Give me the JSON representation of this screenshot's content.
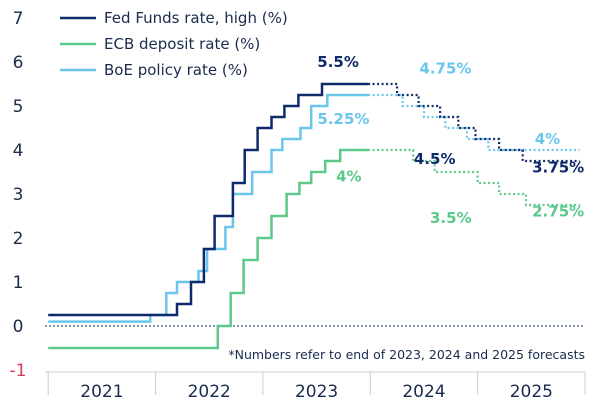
{
  "chart_data": {
    "type": "line",
    "x_categories": [
      "2021",
      "2022",
      "2023",
      "2024",
      "2025"
    ],
    "ylim": [
      -1,
      7
    ],
    "yticks": [
      "-1",
      "0",
      "1",
      "2",
      "3",
      "4",
      "5",
      "6",
      "7"
    ],
    "colors": {
      "fed": "#0e2a6b",
      "ecb": "#5cc98b",
      "boe": "#6bc6ec",
      "axis_text": "#1a2b4c",
      "negative": "#d83c5a"
    },
    "series": [
      {
        "name": "Fed Funds rate, high (%)",
        "color": "#0e2a6b",
        "actual": [
          [
            2021.0,
            0.25
          ],
          [
            2022.2,
            0.25
          ],
          [
            2022.2,
            0.5
          ],
          [
            2022.33,
            0.5
          ],
          [
            2022.33,
            1.0
          ],
          [
            2022.45,
            1.0
          ],
          [
            2022.45,
            1.75
          ],
          [
            2022.55,
            1.75
          ],
          [
            2022.55,
            2.5
          ],
          [
            2022.72,
            2.5
          ],
          [
            2022.72,
            3.25
          ],
          [
            2022.83,
            3.25
          ],
          [
            2022.83,
            4.0
          ],
          [
            2022.95,
            4.0
          ],
          [
            2022.95,
            4.5
          ],
          [
            2023.08,
            4.5
          ],
          [
            2023.08,
            4.75
          ],
          [
            2023.2,
            4.75
          ],
          [
            2023.2,
            5.0
          ],
          [
            2023.33,
            5.0
          ],
          [
            2023.33,
            5.25
          ],
          [
            2023.55,
            5.25
          ],
          [
            2023.55,
            5.5
          ],
          [
            2023.98,
            5.5
          ]
        ],
        "forecast": [
          [
            2023.98,
            5.5
          ],
          [
            2024.25,
            5.5
          ],
          [
            2024.25,
            5.25
          ],
          [
            2024.45,
            5.25
          ],
          [
            2024.45,
            5.0
          ],
          [
            2024.65,
            5.0
          ],
          [
            2024.65,
            4.75
          ],
          [
            2024.82,
            4.75
          ],
          [
            2024.82,
            4.5
          ],
          [
            2024.98,
            4.5
          ],
          [
            2024.98,
            4.25
          ],
          [
            2025.2,
            4.25
          ],
          [
            2025.2,
            4.0
          ],
          [
            2025.42,
            4.0
          ],
          [
            2025.42,
            3.75
          ],
          [
            2025.95,
            3.75
          ]
        ]
      },
      {
        "name": "ECB deposit rate (%)",
        "color": "#5cc98b",
        "actual": [
          [
            2021.0,
            -0.5
          ],
          [
            2022.58,
            -0.5
          ],
          [
            2022.58,
            0.0
          ],
          [
            2022.7,
            0.0
          ],
          [
            2022.7,
            0.75
          ],
          [
            2022.82,
            0.75
          ],
          [
            2022.82,
            1.5
          ],
          [
            2022.95,
            1.5
          ],
          [
            2022.95,
            2.0
          ],
          [
            2023.08,
            2.0
          ],
          [
            2023.08,
            2.5
          ],
          [
            2023.22,
            2.5
          ],
          [
            2023.22,
            3.0
          ],
          [
            2023.34,
            3.0
          ],
          [
            2023.34,
            3.25
          ],
          [
            2023.45,
            3.25
          ],
          [
            2023.45,
            3.5
          ],
          [
            2023.58,
            3.5
          ],
          [
            2023.58,
            3.75
          ],
          [
            2023.72,
            3.75
          ],
          [
            2023.72,
            4.0
          ],
          [
            2023.98,
            4.0
          ]
        ],
        "forecast": [
          [
            2023.98,
            4.0
          ],
          [
            2024.4,
            4.0
          ],
          [
            2024.4,
            3.75
          ],
          [
            2024.6,
            3.75
          ],
          [
            2024.6,
            3.5
          ],
          [
            2025.0,
            3.5
          ],
          [
            2025.0,
            3.25
          ],
          [
            2025.2,
            3.25
          ],
          [
            2025.2,
            3.0
          ],
          [
            2025.45,
            3.0
          ],
          [
            2025.45,
            2.75
          ],
          [
            2025.95,
            2.75
          ]
        ]
      },
      {
        "name": "BoE policy rate (%)",
        "color": "#6bc6ec",
        "actual": [
          [
            2021.0,
            0.1
          ],
          [
            2021.95,
            0.1
          ],
          [
            2021.95,
            0.25
          ],
          [
            2022.1,
            0.25
          ],
          [
            2022.1,
            0.75
          ],
          [
            2022.2,
            0.75
          ],
          [
            2022.2,
            1.0
          ],
          [
            2022.4,
            1.0
          ],
          [
            2022.4,
            1.25
          ],
          [
            2022.48,
            1.25
          ],
          [
            2022.48,
            1.75
          ],
          [
            2022.65,
            1.75
          ],
          [
            2022.65,
            2.25
          ],
          [
            2022.72,
            2.25
          ],
          [
            2022.72,
            3.0
          ],
          [
            2022.9,
            3.0
          ],
          [
            2022.9,
            3.5
          ],
          [
            2023.08,
            3.5
          ],
          [
            2023.08,
            4.0
          ],
          [
            2023.18,
            4.0
          ],
          [
            2023.18,
            4.25
          ],
          [
            2023.35,
            4.25
          ],
          [
            2023.35,
            4.5
          ],
          [
            2023.45,
            4.5
          ],
          [
            2023.45,
            5.0
          ],
          [
            2023.6,
            5.0
          ],
          [
            2023.6,
            5.25
          ],
          [
            2023.98,
            5.25
          ]
        ],
        "forecast": [
          [
            2023.98,
            5.25
          ],
          [
            2024.3,
            5.25
          ],
          [
            2024.3,
            5.0
          ],
          [
            2024.5,
            5.0
          ],
          [
            2024.5,
            4.75
          ],
          [
            2024.7,
            4.75
          ],
          [
            2024.7,
            4.5
          ],
          [
            2024.9,
            4.5
          ],
          [
            2024.9,
            4.25
          ],
          [
            2025.1,
            4.25
          ],
          [
            2025.1,
            4.0
          ],
          [
            2025.95,
            4.0
          ]
        ]
      }
    ],
    "annotations": [
      {
        "text": "5.5%",
        "x": 2023.7,
        "y": 6.0,
        "color": "#0e2a6b"
      },
      {
        "text": "5.25%",
        "x": 2023.75,
        "y": 4.7,
        "color": "#6bc6ec"
      },
      {
        "text": "4%",
        "x": 2023.8,
        "y": 3.4,
        "color": "#5cc98b"
      },
      {
        "text": "4.75%",
        "x": 2024.7,
        "y": 5.85,
        "color": "#6bc6ec"
      },
      {
        "text": "4.5%",
        "x": 2024.6,
        "y": 3.8,
        "color": "#0e2a6b"
      },
      {
        "text": "3.5%",
        "x": 2024.75,
        "y": 2.45,
        "color": "#5cc98b"
      },
      {
        "text": "4%",
        "x": 2025.65,
        "y": 4.25,
        "color": "#6bc6ec"
      },
      {
        "text": "3.75%",
        "x": 2025.75,
        "y": 3.6,
        "color": "#0e2a6b"
      },
      {
        "text": "2.75%",
        "x": 2025.75,
        "y": 2.6,
        "color": "#5cc98b"
      }
    ],
    "note": "*Numbers refer to end of 2023, 2024 and 2025 forecasts",
    "legend_position": "top-left"
  }
}
